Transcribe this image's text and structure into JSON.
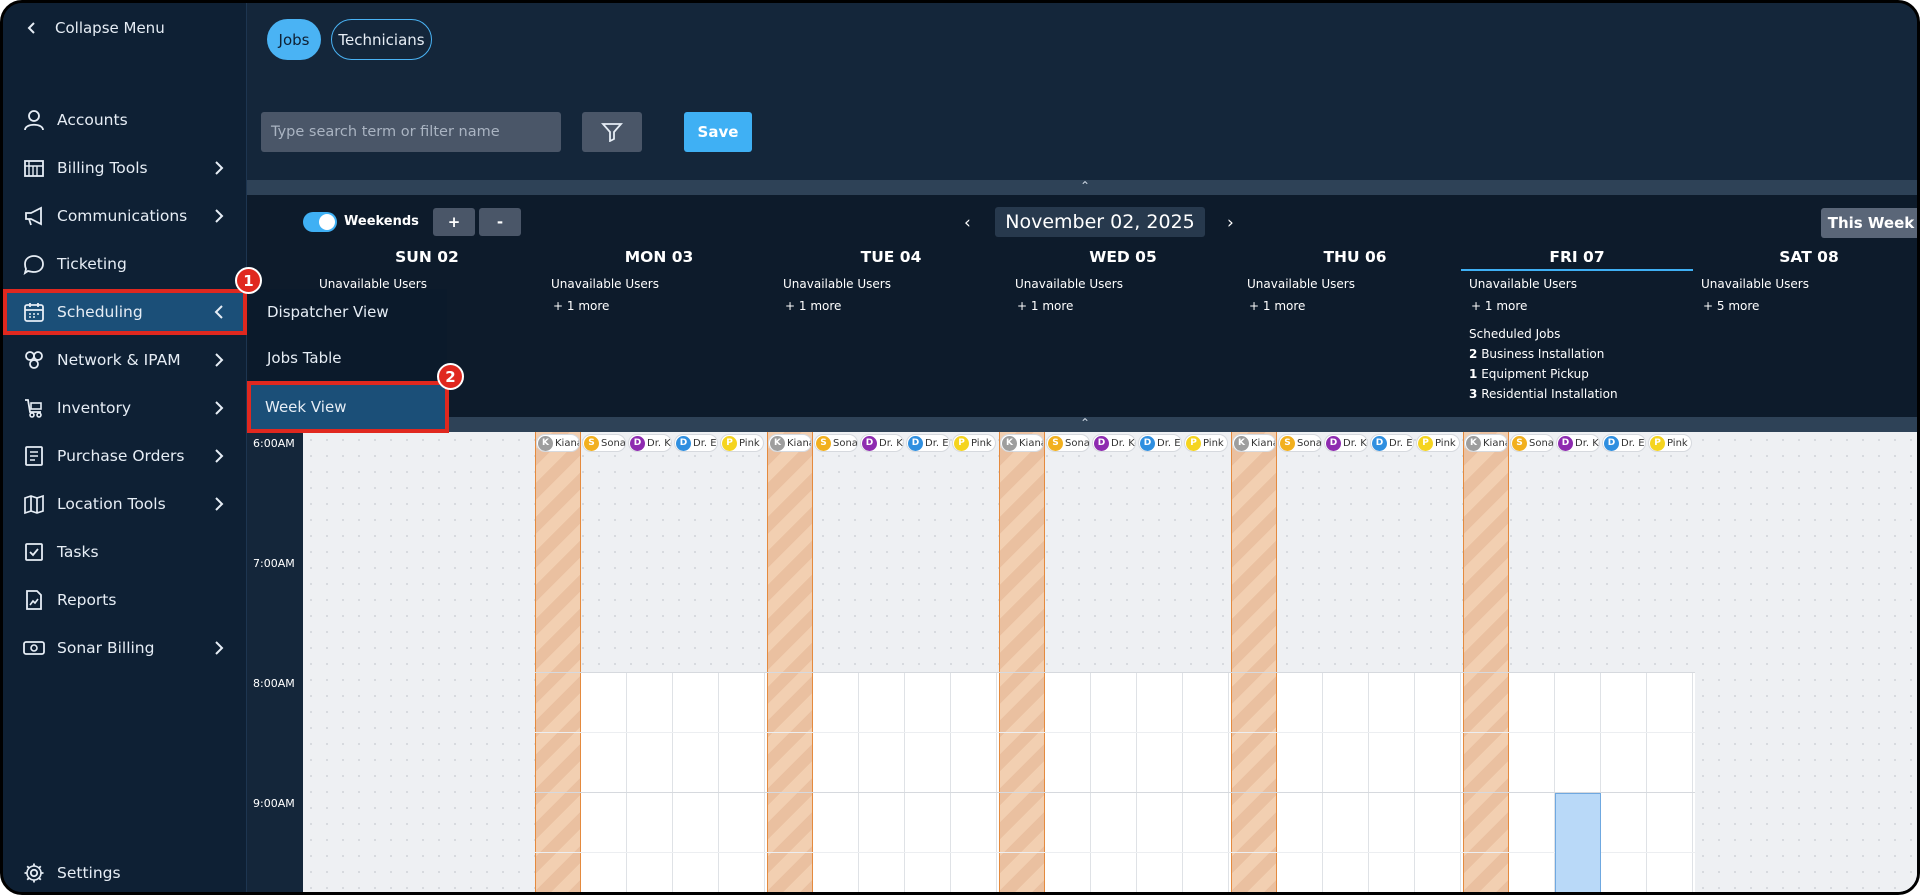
{
  "sidebar": {
    "collapse_label": "Collapse Menu",
    "items": [
      {
        "label": "Accounts",
        "icon": "user-icon",
        "has_chevron": false
      },
      {
        "label": "Billing Tools",
        "icon": "billing-icon",
        "has_chevron": true
      },
      {
        "label": "Communications",
        "icon": "megaphone-icon",
        "has_chevron": true
      },
      {
        "label": "Ticketing",
        "icon": "chat-bubble-icon",
        "has_chevron": false
      },
      {
        "label": "Scheduling",
        "icon": "calendar-icon",
        "has_chevron": true,
        "active": true
      },
      {
        "label": "Network & IPAM",
        "icon": "network-icon",
        "has_chevron": true
      },
      {
        "label": "Inventory",
        "icon": "cart-icon",
        "has_chevron": true
      },
      {
        "label": "Purchase Orders",
        "icon": "document-icon",
        "has_chevron": true
      },
      {
        "label": "Location Tools",
        "icon": "map-icon",
        "has_chevron": true
      },
      {
        "label": "Tasks",
        "icon": "checkbox-icon",
        "has_chevron": false
      },
      {
        "label": "Reports",
        "icon": "report-icon",
        "has_chevron": false
      },
      {
        "label": "Sonar Billing",
        "icon": "money-icon",
        "has_chevron": true
      }
    ],
    "settings_label": "Settings"
  },
  "submenu": {
    "items": [
      "Dispatcher View",
      "Jobs Table",
      "Week View"
    ],
    "active_index": 2
  },
  "annotations": {
    "step1": "1",
    "step2": "2",
    "color": "#e0281f"
  },
  "toolbar": {
    "tabs": [
      "Jobs",
      "Technicians"
    ],
    "active_tab": "Jobs",
    "search_placeholder": "Type search term or filter name",
    "save_label": "Save"
  },
  "week": {
    "weekends_label": "Weekends",
    "weekends_on": true,
    "plus_label": "+",
    "minus_label": "-",
    "prev_label": "‹",
    "next_label": "›",
    "current_date": "November 02, 2025",
    "this_week_label": "This Week",
    "days": [
      {
        "title": "SUN 02",
        "unavailable": "Unavailable Users",
        "more": ""
      },
      {
        "title": "MON 03",
        "unavailable": "Unavailable Users",
        "more": "+ 1 more"
      },
      {
        "title": "TUE 04",
        "unavailable": "Unavailable Users",
        "more": "+ 1 more"
      },
      {
        "title": "WED 05",
        "unavailable": "Unavailable Users",
        "more": "+ 1 more"
      },
      {
        "title": "THU 06",
        "unavailable": "Unavailable Users",
        "more": "+ 1 more"
      },
      {
        "title": "FRI 07",
        "unavailable": "Unavailable Users",
        "more": "+ 1 more",
        "today": true
      },
      {
        "title": "SAT 08",
        "unavailable": "Unavailable Users",
        "more": "+ 5 more"
      }
    ],
    "scheduled_jobs": {
      "label": "Scheduled Jobs",
      "jobs": [
        {
          "count": "2",
          "name": "Business Installation"
        },
        {
          "count": "1",
          "name": "Equipment Pickup"
        },
        {
          "count": "3",
          "name": "Residential Installation"
        }
      ]
    },
    "times": [
      "6:00AM",
      "7:00AM",
      "8:00AM",
      "9:00AM"
    ],
    "technicians": [
      {
        "initial": "K",
        "name": "Kiana",
        "color": "#9e9e9e"
      },
      {
        "initial": "S",
        "name": "Sonar",
        "color": "#f2b01e"
      },
      {
        "initial": "D",
        "name": "Dr. Ko",
        "color": "#8e2bb0"
      },
      {
        "initial": "D",
        "name": "Dr. Ez",
        "color": "#2f8fe0"
      },
      {
        "initial": "P",
        "name": "Pink W",
        "color": "#f5d41f"
      }
    ]
  }
}
